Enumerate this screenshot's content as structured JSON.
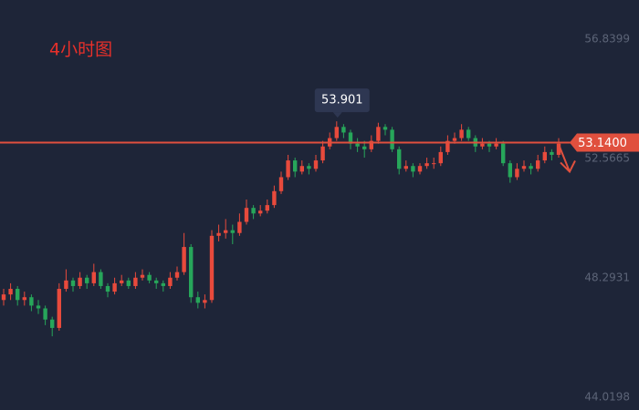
{
  "chart_data": {
    "type": "candlestick",
    "title": "4小时图",
    "open": [
      47.5,
      47.7,
      47.9,
      47.5,
      47.6,
      47.3,
      47.2,
      46.8,
      46.5,
      47.9,
      48.2,
      48.0,
      48.3,
      48.1,
      48.5,
      48.0,
      47.8,
      48.1,
      48.2,
      48.0,
      48.3,
      48.4,
      48.2,
      48.1,
      48.0,
      48.3,
      48.5,
      49.4,
      47.6,
      47.4,
      47.5,
      49.8,
      49.9,
      50.0,
      49.9,
      50.3,
      50.8,
      50.6,
      50.7,
      50.9,
      51.4,
      51.9,
      52.5,
      52.1,
      52.3,
      52.2,
      52.5,
      53.0,
      53.3,
      53.7,
      53.5,
      53.1,
      53.0,
      52.9,
      53.2,
      53.7,
      53.6,
      52.9,
      52.2,
      52.3,
      52.1,
      52.3,
      52.4,
      52.4,
      52.8,
      53.2,
      53.3,
      53.6,
      53.3,
      53.0,
      53.1,
      53.0,
      53.1,
      52.4,
      51.9,
      52.2,
      52.3,
      52.2,
      52.5,
      52.8,
      52.7
    ],
    "high": [
      47.9,
      48.1,
      48.0,
      47.8,
      47.7,
      47.5,
      47.3,
      46.9,
      48.1,
      48.6,
      48.3,
      48.5,
      48.4,
      48.8,
      48.6,
      48.1,
      48.3,
      48.4,
      48.3,
      48.5,
      48.6,
      48.5,
      48.3,
      48.2,
      48.5,
      48.7,
      49.9,
      49.5,
      47.8,
      47.7,
      50.0,
      50.2,
      50.4,
      50.2,
      50.6,
      51.1,
      50.9,
      50.9,
      51.1,
      51.6,
      52.1,
      52.7,
      52.6,
      52.5,
      52.4,
      52.7,
      53.2,
      53.5,
      53.901,
      53.8,
      53.6,
      53.3,
      53.2,
      53.4,
      53.85,
      53.8,
      53.7,
      53.0,
      52.5,
      52.4,
      52.4,
      52.6,
      52.6,
      53.0,
      53.4,
      53.5,
      53.8,
      53.7,
      53.4,
      53.3,
      53.2,
      53.3,
      53.2,
      52.5,
      52.4,
      52.5,
      52.4,
      52.7,
      53.0,
      52.9,
      53.3
    ],
    "low": [
      47.3,
      47.5,
      47.3,
      47.3,
      47.1,
      47.0,
      46.6,
      46.2,
      46.4,
      47.8,
      47.8,
      47.9,
      47.9,
      48.0,
      47.9,
      47.6,
      47.7,
      48.0,
      47.9,
      47.9,
      48.2,
      48.1,
      47.9,
      47.8,
      47.9,
      48.2,
      48.4,
      47.4,
      47.2,
      47.2,
      47.4,
      49.6,
      49.7,
      49.5,
      49.8,
      50.2,
      50.4,
      50.5,
      50.6,
      50.8,
      51.3,
      51.8,
      51.9,
      52.0,
      52.0,
      52.1,
      52.4,
      52.9,
      53.2,
      53.3,
      52.9,
      52.8,
      52.6,
      52.8,
      53.1,
      53.4,
      52.8,
      52.0,
      52.1,
      51.9,
      52.0,
      52.2,
      52.2,
      52.3,
      52.7,
      53.1,
      53.2,
      53.2,
      52.8,
      52.9,
      52.8,
      52.9,
      52.3,
      51.7,
      51.8,
      52.1,
      52.0,
      52.1,
      52.4,
      52.5,
      52.6
    ],
    "close": [
      47.7,
      47.9,
      47.5,
      47.6,
      47.3,
      47.2,
      46.8,
      46.5,
      47.9,
      48.2,
      48.0,
      48.3,
      48.1,
      48.5,
      48.0,
      47.8,
      48.1,
      48.2,
      48.0,
      48.3,
      48.4,
      48.2,
      48.1,
      48.0,
      48.3,
      48.5,
      49.4,
      47.6,
      47.4,
      47.5,
      49.8,
      49.9,
      50.0,
      49.9,
      50.3,
      50.8,
      50.6,
      50.7,
      50.9,
      51.4,
      51.9,
      52.5,
      52.1,
      52.3,
      52.2,
      52.5,
      53.0,
      53.3,
      53.7,
      53.5,
      53.1,
      53.0,
      52.9,
      53.2,
      53.7,
      53.6,
      52.9,
      52.2,
      52.3,
      52.1,
      52.3,
      52.4,
      52.4,
      52.8,
      53.2,
      53.3,
      53.6,
      53.3,
      53.0,
      53.1,
      53.0,
      53.1,
      52.4,
      51.9,
      52.2,
      52.3,
      52.2,
      52.5,
      52.8,
      52.7,
      53.1
    ],
    "up_color": "#e84a3c",
    "down_color": "#27a65a",
    "ylim": [
      43.56,
      58.247
    ],
    "yticks": [
      44.0198,
      48.2931,
      52.5665,
      56.8399
    ],
    "last_price": {
      "value": 53.14,
      "label": "53.1400"
    },
    "last_price_color": "#e0503e",
    "high_marker_index": 48
  }
}
